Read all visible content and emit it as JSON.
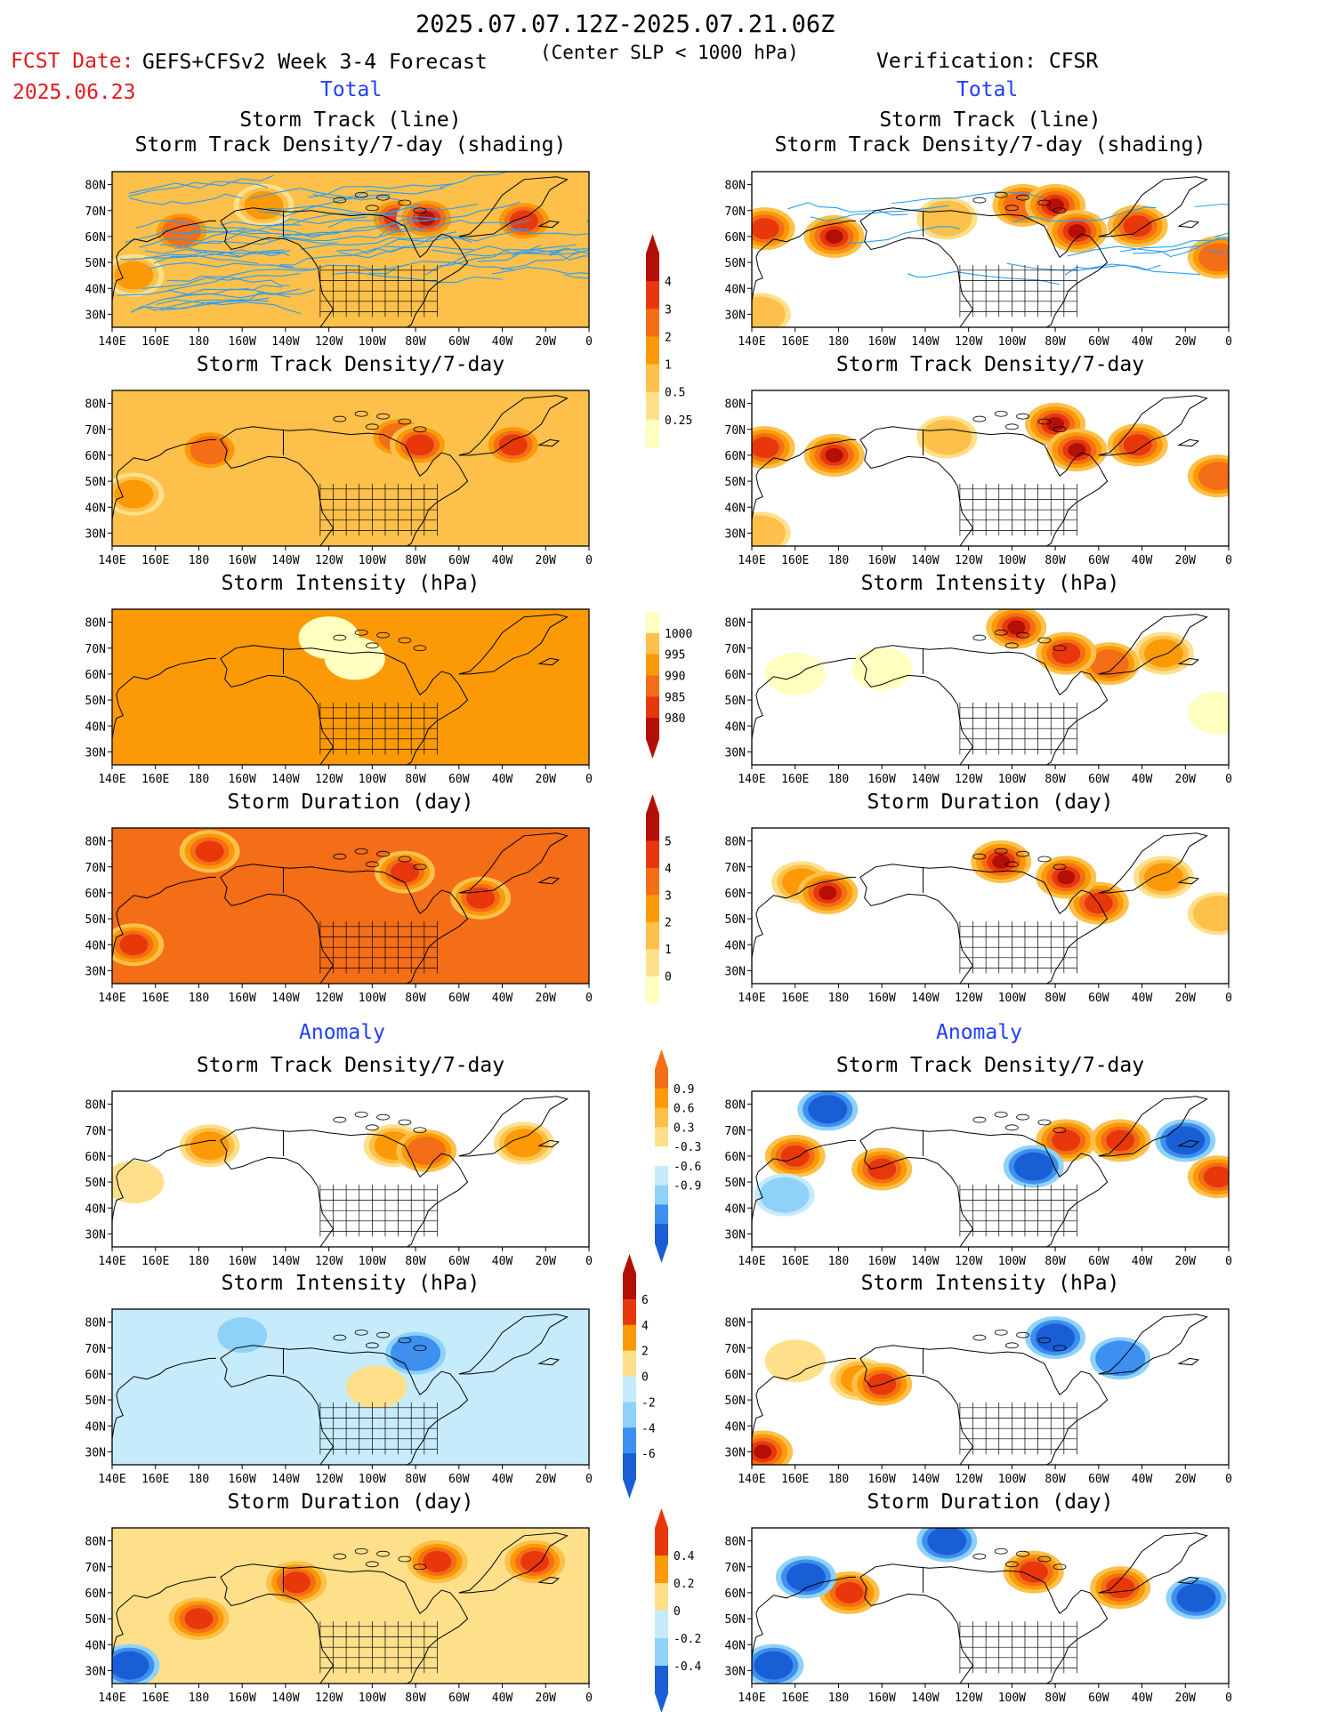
{
  "header": {
    "period": "2025.07.07.12Z-2025.07.21.06Z",
    "forecast_label": "FCST Date:",
    "forecast_date": "2025.06.23",
    "model": "GEFS+CFSv2 Week 3-4 Forecast",
    "criterion": "(Center SLP < 1000 hPa)",
    "verification": "Verification: CFSR"
  },
  "sections": {
    "total": "Total",
    "anomaly": "Anomaly"
  },
  "colors": {
    "yellow_light": "#ffffbf",
    "yellow": "#fee08b",
    "orange_light": "#fdc04a",
    "orange": "#fb9a06",
    "orange_dark": "#f46d17",
    "red": "#e8380b",
    "red_dark": "#b40f07",
    "blue_pale": "#c6ecfc",
    "blue_light": "#8fd2f7",
    "blue": "#3d8ff0",
    "blue_dark": "#1a5ed6",
    "track_line": "#2a9df4"
  },
  "chart_data": [
    {
      "type": "heatmap",
      "panel": "forecast-total-track-density-lines",
      "title": [
        "Storm Track (line)",
        "Storm Track Density/7-day (shading)"
      ],
      "x_ticks": [
        "140E",
        "160E",
        "180",
        "160W",
        "140W",
        "120W",
        "100W",
        "80W",
        "60W",
        "40W",
        "20W",
        "0"
      ],
      "y_ticks": [
        "80N",
        "70N",
        "60N",
        "50N",
        "40N",
        "30N"
      ],
      "lon_range": [
        140,
        360
      ],
      "lat_range": [
        25,
        85
      ],
      "has_tracks": true,
      "fill": "orange_light",
      "blobs": [
        {
          "lon": 210,
          "lat": 72,
          "level": "orange"
        },
        {
          "lon": 272,
          "lat": 67,
          "level": "red"
        },
        {
          "lon": 285,
          "lat": 67,
          "level": "red_dark"
        },
        {
          "lon": 330,
          "lat": 66,
          "level": "red"
        },
        {
          "lon": 172,
          "lat": 62,
          "level": "orange_dark"
        },
        {
          "lon": 150,
          "lat": 45,
          "level": "orange"
        }
      ]
    },
    {
      "type": "heatmap",
      "panel": "verification-total-track-density-lines",
      "title": [
        "Storm Track (line)",
        "Storm Track Density/7-day (shading)"
      ],
      "x_ticks": [
        "140E",
        "160E",
        "180",
        "160W",
        "140W",
        "120W",
        "100W",
        "80W",
        "60W",
        "40W",
        "20W",
        "0"
      ],
      "y_ticks": [
        "80N",
        "70N",
        "60N",
        "50N",
        "40N",
        "30N"
      ],
      "lon_range": [
        140,
        360
      ],
      "lat_range": [
        25,
        85
      ],
      "has_tracks": true,
      "fill": "none",
      "blobs": [
        {
          "lon": 146,
          "lat": 63,
          "level": "red"
        },
        {
          "lon": 178,
          "lat": 60,
          "level": "red_dark"
        },
        {
          "lon": 230,
          "lat": 67,
          "level": "orange_light"
        },
        {
          "lon": 265,
          "lat": 72,
          "level": "orange_dark"
        },
        {
          "lon": 280,
          "lat": 72,
          "level": "red_dark"
        },
        {
          "lon": 290,
          "lat": 62,
          "level": "red_dark"
        },
        {
          "lon": 318,
          "lat": 64,
          "level": "red"
        },
        {
          "lon": 355,
          "lat": 52,
          "level": "orange_dark"
        },
        {
          "lon": 144,
          "lat": 30,
          "level": "orange_light"
        }
      ]
    },
    {
      "type": "heatmap",
      "panel": "forecast-total-track-density",
      "title": [
        "Storm Track Density/7-day"
      ],
      "x_ticks": [
        "140E",
        "160E",
        "180",
        "160W",
        "140W",
        "120W",
        "100W",
        "80W",
        "60W",
        "40W",
        "20W",
        "0"
      ],
      "y_ticks": [
        "80N",
        "70N",
        "60N",
        "50N",
        "40N",
        "30N"
      ],
      "lon_range": [
        140,
        360
      ],
      "lat_range": [
        25,
        85
      ],
      "fill": "orange_light",
      "blobs": [
        {
          "lon": 185,
          "lat": 62,
          "level": "orange_dark"
        },
        {
          "lon": 272,
          "lat": 67,
          "level": "orange_dark"
        },
        {
          "lon": 282,
          "lat": 64,
          "level": "red"
        },
        {
          "lon": 325,
          "lat": 64,
          "level": "red"
        },
        {
          "lon": 150,
          "lat": 45,
          "level": "orange"
        }
      ]
    },
    {
      "type": "heatmap",
      "panel": "verification-total-track-density",
      "title": [
        "Storm Track Density/7-day"
      ],
      "x_ticks": [
        "140E",
        "160E",
        "180",
        "160W",
        "140W",
        "120W",
        "100W",
        "80W",
        "60W",
        "40W",
        "20W",
        "0"
      ],
      "y_ticks": [
        "80N",
        "70N",
        "60N",
        "50N",
        "40N",
        "30N"
      ],
      "lon_range": [
        140,
        360
      ],
      "lat_range": [
        25,
        85
      ],
      "fill": "none",
      "blobs": [
        {
          "lon": 146,
          "lat": 63,
          "level": "red"
        },
        {
          "lon": 178,
          "lat": 60,
          "level": "red_dark"
        },
        {
          "lon": 230,
          "lat": 67,
          "level": "orange_light"
        },
        {
          "lon": 280,
          "lat": 72,
          "level": "red_dark"
        },
        {
          "lon": 290,
          "lat": 62,
          "level": "red_dark"
        },
        {
          "lon": 318,
          "lat": 64,
          "level": "red"
        },
        {
          "lon": 355,
          "lat": 52,
          "level": "orange_dark"
        },
        {
          "lon": 144,
          "lat": 30,
          "level": "orange_light"
        }
      ]
    },
    {
      "type": "heatmap",
      "panel": "forecast-total-intensity",
      "title": [
        "Storm Intensity (hPa)"
      ],
      "x_ticks": [
        "140E",
        "160E",
        "180",
        "160W",
        "140W",
        "120W",
        "100W",
        "80W",
        "60W",
        "40W",
        "20W",
        "0"
      ],
      "y_ticks": [
        "80N",
        "70N",
        "60N",
        "50N",
        "40N",
        "30N"
      ],
      "lon_range": [
        140,
        360
      ],
      "lat_range": [
        25,
        85
      ],
      "fill": "orange",
      "blobs": [
        {
          "lon": 252,
          "lat": 66,
          "level": "yellow_light"
        },
        {
          "lon": 240,
          "lat": 74,
          "level": "yellow_light"
        }
      ]
    },
    {
      "type": "heatmap",
      "panel": "verification-total-intensity",
      "title": [
        "Storm Intensity (hPa)"
      ],
      "x_ticks": [
        "140E",
        "160E",
        "180",
        "160W",
        "140W",
        "120W",
        "100W",
        "80W",
        "60W",
        "40W",
        "20W",
        "0"
      ],
      "y_ticks": [
        "80N",
        "70N",
        "60N",
        "50N",
        "40N",
        "30N"
      ],
      "lon_range": [
        140,
        360
      ],
      "lat_range": [
        25,
        85
      ],
      "fill": "none",
      "blobs": [
        {
          "lon": 160,
          "lat": 60,
          "level": "yellow_light"
        },
        {
          "lon": 200,
          "lat": 62,
          "level": "yellow_light"
        },
        {
          "lon": 262,
          "lat": 78,
          "level": "red_dark"
        },
        {
          "lon": 285,
          "lat": 68,
          "level": "red"
        },
        {
          "lon": 305,
          "lat": 64,
          "level": "orange_dark"
        },
        {
          "lon": 330,
          "lat": 68,
          "level": "orange"
        },
        {
          "lon": 355,
          "lat": 45,
          "level": "yellow_light"
        }
      ]
    },
    {
      "type": "heatmap",
      "panel": "forecast-total-duration",
      "title": [
        "Storm Duration (day)"
      ],
      "x_ticks": [
        "140E",
        "160E",
        "180",
        "160W",
        "140W",
        "120W",
        "100W",
        "80W",
        "60W",
        "40W",
        "20W",
        "0"
      ],
      "y_ticks": [
        "80N",
        "70N",
        "60N",
        "50N",
        "40N",
        "30N"
      ],
      "lon_range": [
        140,
        360
      ],
      "lat_range": [
        25,
        85
      ],
      "fill": "orange_dark",
      "blobs": [
        {
          "lon": 185,
          "lat": 76,
          "level": "red"
        },
        {
          "lon": 275,
          "lat": 68,
          "level": "red"
        },
        {
          "lon": 310,
          "lat": 58,
          "level": "red"
        },
        {
          "lon": 150,
          "lat": 40,
          "level": "red"
        }
      ]
    },
    {
      "type": "heatmap",
      "panel": "verification-total-duration",
      "title": [
        "Storm Duration (day)"
      ],
      "x_ticks": [
        "140E",
        "160E",
        "180",
        "160W",
        "140W",
        "120W",
        "100W",
        "80W",
        "60W",
        "40W",
        "20W",
        "0"
      ],
      "y_ticks": [
        "80N",
        "70N",
        "60N",
        "50N",
        "40N",
        "30N"
      ],
      "lon_range": [
        140,
        360
      ],
      "lat_range": [
        25,
        85
      ],
      "fill": "none",
      "blobs": [
        {
          "lon": 163,
          "lat": 64,
          "level": "orange"
        },
        {
          "lon": 175,
          "lat": 60,
          "level": "red_dark"
        },
        {
          "lon": 255,
          "lat": 72,
          "level": "red_dark"
        },
        {
          "lon": 285,
          "lat": 66,
          "level": "red_dark"
        },
        {
          "lon": 300,
          "lat": 56,
          "level": "red"
        },
        {
          "lon": 330,
          "lat": 66,
          "level": "orange"
        },
        {
          "lon": 355,
          "lat": 52,
          "level": "orange_light"
        }
      ]
    },
    {
      "type": "heatmap",
      "panel": "forecast-anomaly-track-density",
      "title": [
        "Storm Track Density/7-day"
      ],
      "x_ticks": [
        "140E",
        "160E",
        "180",
        "160W",
        "140W",
        "120W",
        "100W",
        "80W",
        "60W",
        "40W",
        "20W",
        "0"
      ],
      "y_ticks": [
        "80N",
        "70N",
        "60N",
        "50N",
        "40N",
        "30N"
      ],
      "lon_range": [
        140,
        360
      ],
      "lat_range": [
        25,
        85
      ],
      "fill": "none",
      "blobs": [
        {
          "lon": 150,
          "lat": 50,
          "level": "yellow"
        },
        {
          "lon": 185,
          "lat": 64,
          "level": "orange"
        },
        {
          "lon": 270,
          "lat": 64,
          "level": "orange"
        },
        {
          "lon": 285,
          "lat": 62,
          "level": "orange_dark"
        },
        {
          "lon": 330,
          "lat": 65,
          "level": "orange"
        }
      ]
    },
    {
      "type": "heatmap",
      "panel": "verification-anomaly-track-density",
      "title": [
        "Storm Track Density/7-day"
      ],
      "x_ticks": [
        "140E",
        "160E",
        "180",
        "160W",
        "140W",
        "120W",
        "100W",
        "80W",
        "60W",
        "40W",
        "20W",
        "0"
      ],
      "y_ticks": [
        "80N",
        "70N",
        "60N",
        "50N",
        "40N",
        "30N"
      ],
      "lon_range": [
        140,
        360
      ],
      "lat_range": [
        25,
        85
      ],
      "fill": "none",
      "blobs": [
        {
          "lon": 175,
          "lat": 78,
          "level": "blue_dark"
        },
        {
          "lon": 160,
          "lat": 60,
          "level": "red"
        },
        {
          "lon": 200,
          "lat": 55,
          "level": "red"
        },
        {
          "lon": 155,
          "lat": 45,
          "level": "blue_light"
        },
        {
          "lon": 270,
          "lat": 56,
          "level": "blue_dark"
        },
        {
          "lon": 285,
          "lat": 66,
          "level": "red"
        },
        {
          "lon": 310,
          "lat": 66,
          "level": "red"
        },
        {
          "lon": 340,
          "lat": 66,
          "level": "blue_dark"
        },
        {
          "lon": 355,
          "lat": 52,
          "level": "red"
        }
      ]
    },
    {
      "type": "heatmap",
      "panel": "forecast-anomaly-intensity",
      "title": [
        "Storm Intensity (hPa)"
      ],
      "x_ticks": [
        "140E",
        "160E",
        "180",
        "160W",
        "140W",
        "120W",
        "100W",
        "80W",
        "60W",
        "40W",
        "20W",
        "0"
      ],
      "y_ticks": [
        "80N",
        "70N",
        "60N",
        "50N",
        "40N",
        "30N"
      ],
      "lon_range": [
        140,
        360
      ],
      "lat_range": [
        25,
        85
      ],
      "fill": "blue_pale",
      "blobs": [
        {
          "lon": 200,
          "lat": 75,
          "level": "blue_light"
        },
        {
          "lon": 280,
          "lat": 68,
          "level": "blue"
        },
        {
          "lon": 262,
          "lat": 55,
          "level": "yellow"
        }
      ]
    },
    {
      "type": "heatmap",
      "panel": "verification-anomaly-intensity",
      "title": [
        "Storm Intensity (hPa)"
      ],
      "x_ticks": [
        "140E",
        "160E",
        "180",
        "160W",
        "140W",
        "120W",
        "100W",
        "80W",
        "60W",
        "40W",
        "20W",
        "0"
      ],
      "y_ticks": [
        "80N",
        "70N",
        "60N",
        "50N",
        "40N",
        "30N"
      ],
      "lon_range": [
        140,
        360
      ],
      "lat_range": [
        25,
        85
      ],
      "fill": "none",
      "blobs": [
        {
          "lon": 160,
          "lat": 65,
          "level": "yellow"
        },
        {
          "lon": 190,
          "lat": 58,
          "level": "orange"
        },
        {
          "lon": 200,
          "lat": 56,
          "level": "red"
        },
        {
          "lon": 280,
          "lat": 74,
          "level": "blue_dark"
        },
        {
          "lon": 310,
          "lat": 66,
          "level": "blue"
        },
        {
          "lon": 145,
          "lat": 30,
          "level": "red_dark"
        }
      ]
    },
    {
      "type": "heatmap",
      "panel": "forecast-anomaly-duration",
      "title": [
        "Storm Duration (day)"
      ],
      "x_ticks": [
        "140E",
        "160E",
        "180",
        "160W",
        "140W",
        "120W",
        "100W",
        "80W",
        "60W",
        "40W",
        "20W",
        "0"
      ],
      "y_ticks": [
        "80N",
        "70N",
        "60N",
        "50N",
        "40N",
        "30N"
      ],
      "lon_range": [
        140,
        360
      ],
      "lat_range": [
        25,
        85
      ],
      "fill": "yellow",
      "blobs": [
        {
          "lon": 225,
          "lat": 64,
          "level": "red"
        },
        {
          "lon": 290,
          "lat": 72,
          "level": "red"
        },
        {
          "lon": 335,
          "lat": 72,
          "level": "red"
        },
        {
          "lon": 180,
          "lat": 50,
          "level": "red"
        },
        {
          "lon": 148,
          "lat": 32,
          "level": "blue_dark"
        }
      ]
    },
    {
      "type": "heatmap",
      "panel": "verification-anomaly-duration",
      "title": [
        "Storm Duration (day)"
      ],
      "x_ticks": [
        "140E",
        "160E",
        "180",
        "160W",
        "140W",
        "120W",
        "100W",
        "80W",
        "60W",
        "40W",
        "20W",
        "0"
      ],
      "y_ticks": [
        "80N",
        "70N",
        "60N",
        "50N",
        "40N",
        "30N"
      ],
      "lon_range": [
        140,
        360
      ],
      "lat_range": [
        25,
        85
      ],
      "fill": "none",
      "blobs": [
        {
          "lon": 165,
          "lat": 66,
          "level": "blue_dark"
        },
        {
          "lon": 185,
          "lat": 60,
          "level": "red"
        },
        {
          "lon": 230,
          "lat": 80,
          "level": "blue_dark"
        },
        {
          "lon": 270,
          "lat": 68,
          "level": "red"
        },
        {
          "lon": 310,
          "lat": 62,
          "level": "red"
        },
        {
          "lon": 345,
          "lat": 58,
          "level": "blue_dark"
        },
        {
          "lon": 150,
          "lat": 32,
          "level": "blue_dark"
        }
      ]
    }
  ],
  "colorbars": [
    {
      "name": "colorbar-total-density",
      "labels": [
        "4",
        "3",
        "2",
        "1",
        "0.5",
        "0.25"
      ],
      "colors": [
        "red_dark",
        "red",
        "orange_dark",
        "orange",
        "orange_light",
        "yellow",
        "yellow_light"
      ]
    },
    {
      "name": "colorbar-total-intensity",
      "labels": [
        "1000",
        "995",
        "990",
        "985",
        "980"
      ],
      "colors": [
        "yellow_light",
        "orange_light",
        "orange",
        "orange_dark",
        "red",
        "red_dark"
      ]
    },
    {
      "name": "colorbar-total-duration",
      "labels": [
        "5",
        "4",
        "3",
        "2",
        "1",
        "0"
      ],
      "colors": [
        "red_dark",
        "red",
        "orange_dark",
        "orange",
        "orange_light",
        "yellow",
        "yellow_light"
      ]
    },
    {
      "name": "colorbar-anomaly-density",
      "labels": [
        "0.9",
        "0.6",
        "0.3",
        "-0.3",
        "-0.6",
        "-0.9"
      ],
      "colors": [
        "orange_dark",
        "orange",
        "orange_light",
        "yellow",
        "white",
        "blue_pale",
        "blue_light",
        "blue",
        "blue_dark"
      ]
    },
    {
      "name": "colorbar-anomaly-intensity",
      "labels": [
        "6",
        "4",
        "2",
        "0",
        "-2",
        "-4",
        "-6"
      ],
      "colors": [
        "red_dark",
        "red",
        "orange",
        "yellow",
        "blue_pale",
        "blue_light",
        "blue",
        "blue_dark"
      ]
    },
    {
      "name": "colorbar-anomaly-duration",
      "labels": [
        "0.4",
        "0.2",
        "0",
        "-0.2",
        "-0.4"
      ],
      "colors": [
        "red",
        "orange",
        "yellow",
        "blue_pale",
        "blue_light",
        "blue_dark"
      ]
    }
  ]
}
